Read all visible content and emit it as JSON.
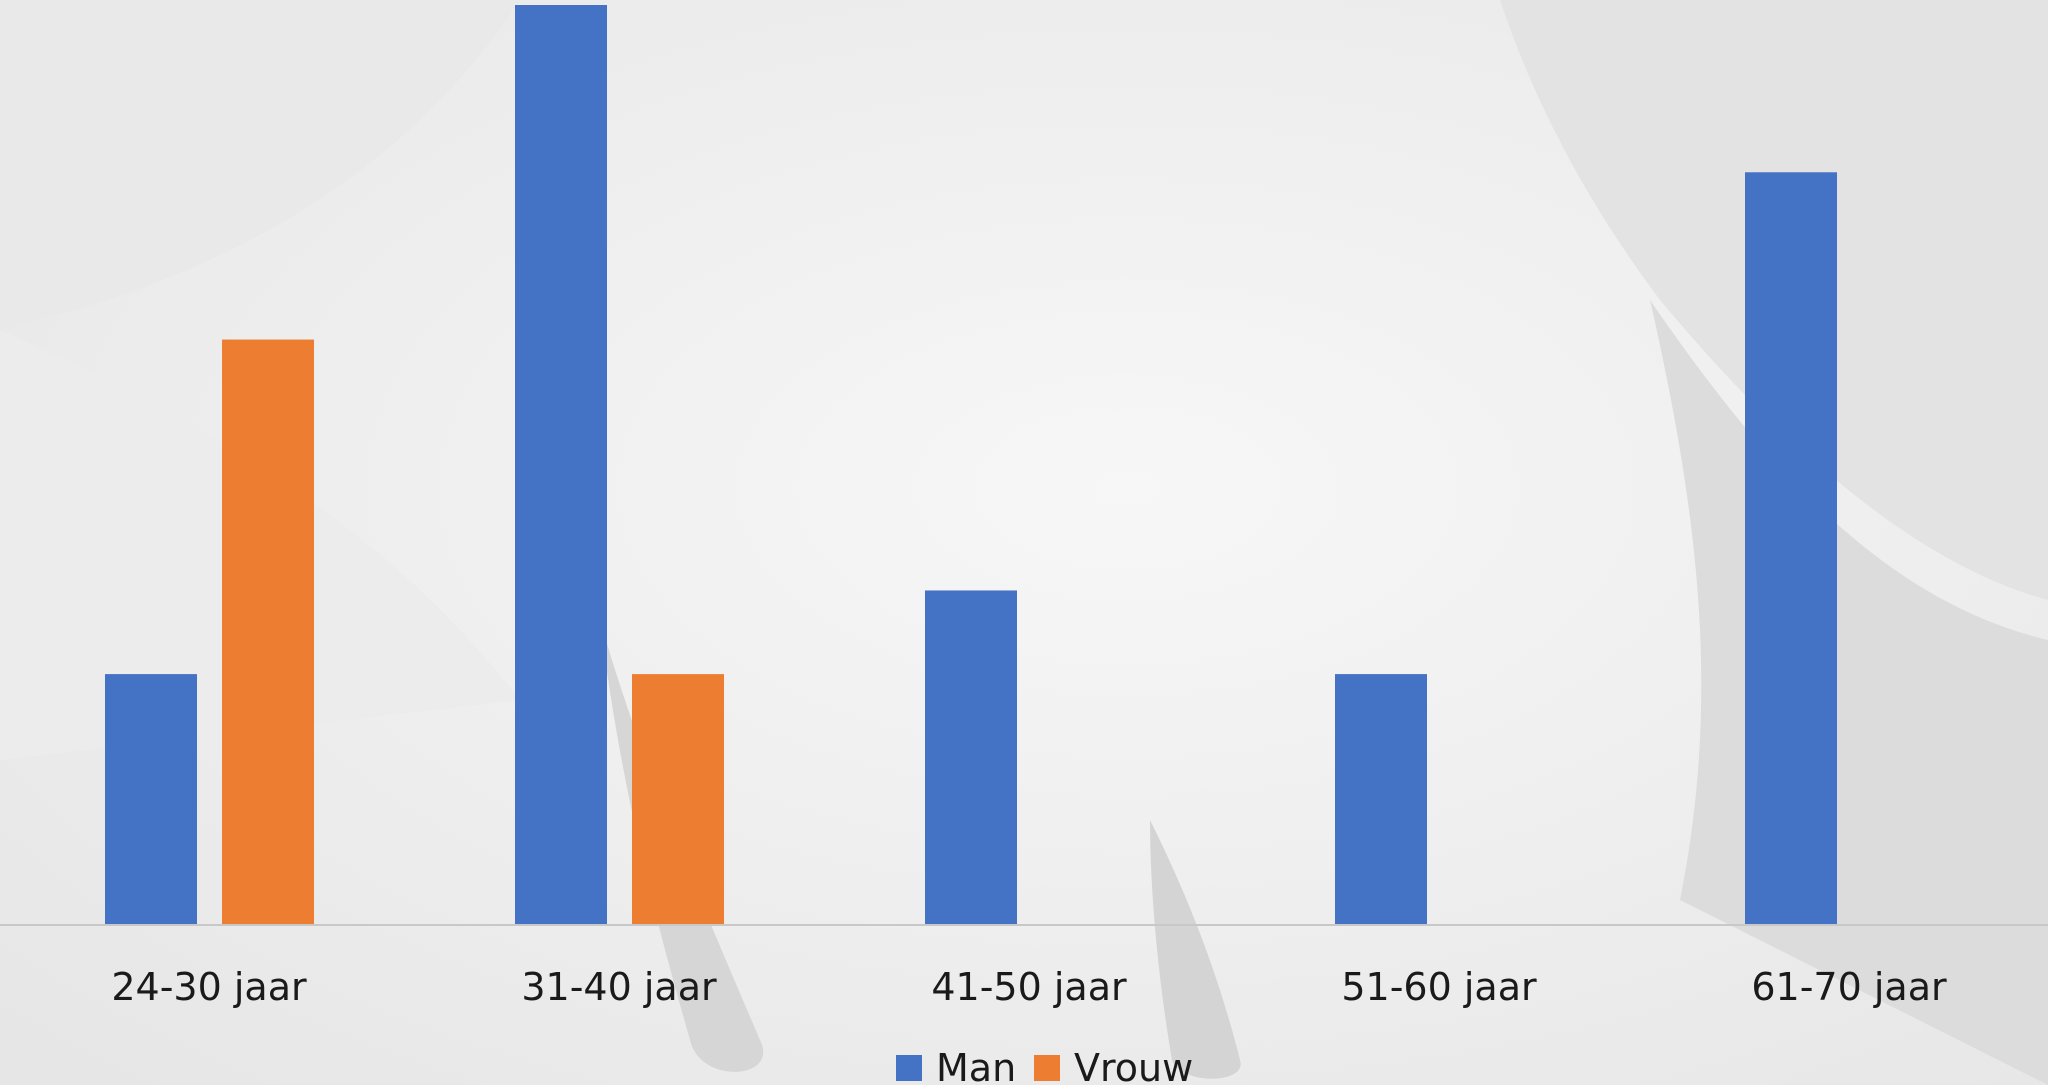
{
  "chart_data": {
    "type": "bar",
    "categories": [
      "24-30 jaar",
      "31-40 jaar",
      "41-50 jaar",
      "51-60 jaar",
      "61-70 jaar"
    ],
    "series": [
      {
        "name": "Man",
        "values": [
          3,
          11,
          4,
          3,
          9
        ],
        "color": "#4472c4"
      },
      {
        "name": "Vrouw",
        "values": [
          7,
          3,
          0,
          0,
          0
        ],
        "color": "#ed7d31"
      }
    ],
    "ylim": [
      0,
      11
    ],
    "grid": false,
    "legend_position": "bottom",
    "background": "faded grayscale photo of a cow udder"
  }
}
